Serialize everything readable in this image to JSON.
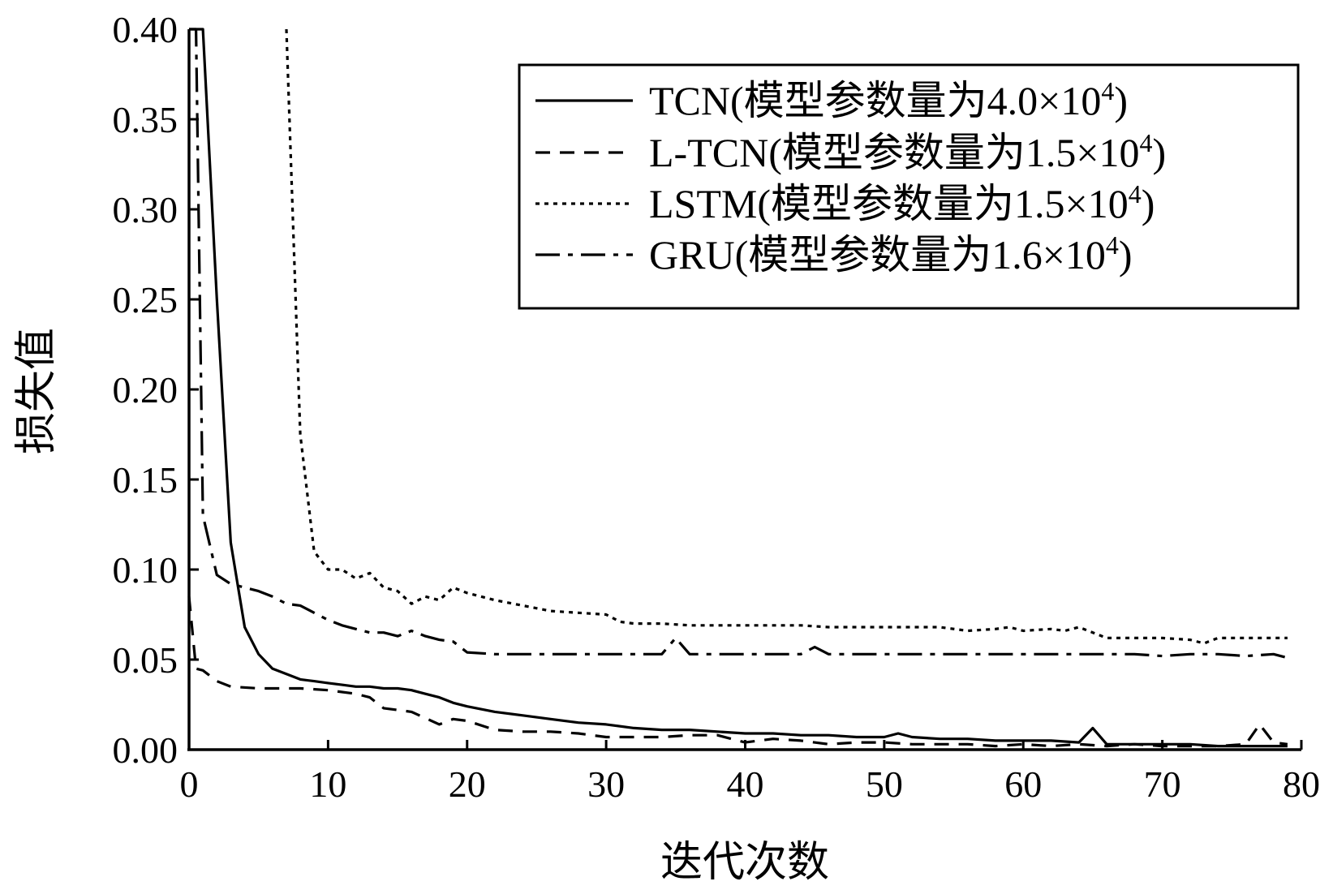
{
  "chart_data": {
    "type": "line",
    "title": "",
    "xlabel": "迭代次数",
    "ylabel": "损失值",
    "xlim": [
      0,
      80
    ],
    "ylim": [
      0,
      0.4
    ],
    "xticks": [
      0,
      10,
      20,
      30,
      40,
      50,
      60,
      70,
      80
    ],
    "yticks": [
      0.0,
      0.05,
      0.1,
      0.15,
      0.2,
      0.25,
      0.3,
      0.35,
      0.4
    ],
    "ytick_labels": [
      "0.00",
      "0.05",
      "0.10",
      "0.15",
      "0.20",
      "0.25",
      "0.30",
      "0.35",
      "0.40"
    ],
    "grid": false,
    "legend_position": "top-right",
    "series": [
      {
        "name": "TCN(模型参数量为4.0×10",
        "name_sup": "4",
        "name_end": ")",
        "style": "solid",
        "x": [
          0,
          1,
          2,
          3,
          4,
          5,
          6,
          7,
          8,
          9,
          10,
          11,
          12,
          13,
          14,
          15,
          16,
          17,
          18,
          19,
          20,
          22,
          24,
          26,
          28,
          30,
          32,
          34,
          36,
          38,
          40,
          42,
          44,
          46,
          48,
          50,
          51,
          52,
          54,
          56,
          58,
          60,
          62,
          64,
          65,
          66,
          68,
          70,
          72,
          74,
          76,
          78,
          79
        ],
        "y": [
          0.4,
          0.4,
          0.25,
          0.115,
          0.068,
          0.053,
          0.045,
          0.042,
          0.039,
          0.038,
          0.037,
          0.036,
          0.035,
          0.035,
          0.034,
          0.034,
          0.033,
          0.031,
          0.029,
          0.026,
          0.024,
          0.021,
          0.019,
          0.017,
          0.015,
          0.014,
          0.012,
          0.011,
          0.011,
          0.01,
          0.009,
          0.009,
          0.008,
          0.008,
          0.007,
          0.007,
          0.009,
          0.007,
          0.006,
          0.006,
          0.005,
          0.005,
          0.005,
          0.004,
          0.012,
          0.003,
          0.003,
          0.003,
          0.003,
          0.002,
          0.002,
          0.002,
          0.002
        ]
      },
      {
        "name": "L-TCN(模型参数量为1.5×10",
        "name_sup": "4",
        "name_end": ")",
        "style": "dashed",
        "x": [
          0,
          0.5,
          1,
          2,
          3,
          5,
          8,
          10,
          12,
          13,
          14,
          16,
          18,
          19,
          20,
          22,
          24,
          26,
          28,
          30,
          32,
          34,
          36,
          38,
          40,
          42,
          44,
          46,
          48,
          50,
          52,
          54,
          56,
          58,
          60,
          62,
          64,
          66,
          68,
          70,
          72,
          74,
          76,
          77,
          78,
          79
        ],
        "y": [
          0.085,
          0.045,
          0.044,
          0.038,
          0.035,
          0.034,
          0.034,
          0.033,
          0.031,
          0.029,
          0.023,
          0.021,
          0.014,
          0.017,
          0.016,
          0.011,
          0.01,
          0.01,
          0.009,
          0.007,
          0.007,
          0.007,
          0.008,
          0.008,
          0.004,
          0.006,
          0.005,
          0.003,
          0.004,
          0.004,
          0.003,
          0.003,
          0.003,
          0.002,
          0.003,
          0.002,
          0.003,
          0.002,
          0.003,
          0.002,
          0.002,
          0.002,
          0.003,
          0.014,
          0.004,
          0.003
        ]
      },
      {
        "name": "LSTM(模型参数量为1.5×10",
        "name_sup": "4",
        "name_end": ")",
        "style": "dotted",
        "x": [
          7,
          8,
          9,
          10,
          11,
          12,
          13,
          14,
          15,
          16,
          17,
          18,
          19,
          20,
          22,
          24,
          26,
          28,
          30,
          31,
          32,
          34,
          36,
          38,
          40,
          42,
          44,
          46,
          48,
          50,
          52,
          54,
          56,
          58,
          59,
          60,
          62,
          63,
          64,
          66,
          68,
          70,
          72,
          73,
          74,
          76,
          78,
          79
        ],
        "y": [
          0.4,
          0.175,
          0.11,
          0.1,
          0.1,
          0.095,
          0.098,
          0.09,
          0.088,
          0.081,
          0.085,
          0.083,
          0.09,
          0.087,
          0.083,
          0.08,
          0.077,
          0.076,
          0.075,
          0.071,
          0.07,
          0.07,
          0.069,
          0.069,
          0.069,
          0.069,
          0.069,
          0.068,
          0.068,
          0.068,
          0.068,
          0.068,
          0.066,
          0.067,
          0.068,
          0.066,
          0.067,
          0.066,
          0.068,
          0.062,
          0.062,
          0.062,
          0.061,
          0.059,
          0.062,
          0.062,
          0.062,
          0.062
        ]
      },
      {
        "name": "GRU(模型参数量为1.6×10",
        "name_sup": "4",
        "name_end": ")",
        "style": "dashdot",
        "x": [
          0,
          0.5,
          1,
          2,
          3,
          4,
          5,
          6,
          7,
          8,
          9,
          10,
          11,
          12,
          13,
          14,
          15,
          16,
          17,
          18,
          19,
          20,
          22,
          24,
          26,
          28,
          30,
          32,
          34,
          35,
          36,
          38,
          40,
          42,
          44,
          45,
          46,
          48,
          50,
          52,
          54,
          56,
          58,
          60,
          62,
          64,
          66,
          68,
          70,
          72,
          74,
          76,
          78,
          79
        ],
        "y": [
          0.4,
          0.4,
          0.13,
          0.097,
          0.092,
          0.09,
          0.088,
          0.085,
          0.081,
          0.08,
          0.076,
          0.072,
          0.069,
          0.067,
          0.065,
          0.065,
          0.063,
          0.066,
          0.063,
          0.061,
          0.06,
          0.054,
          0.053,
          0.053,
          0.053,
          0.053,
          0.053,
          0.053,
          0.053,
          0.062,
          0.053,
          0.053,
          0.053,
          0.053,
          0.053,
          0.057,
          0.053,
          0.053,
          0.053,
          0.053,
          0.053,
          0.053,
          0.053,
          0.053,
          0.053,
          0.053,
          0.053,
          0.053,
          0.052,
          0.053,
          0.053,
          0.052,
          0.053,
          0.051
        ]
      }
    ]
  }
}
